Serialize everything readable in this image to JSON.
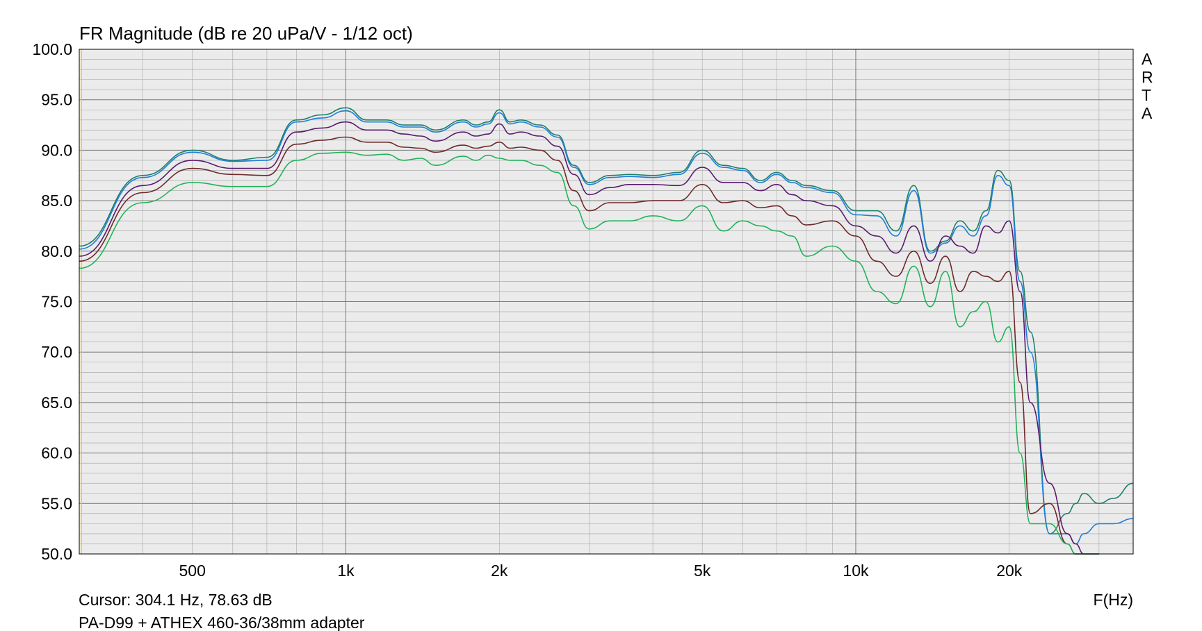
{
  "chart_data": {
    "type": "line",
    "title": "FR Magnitude (dB re 20 uPa/V - 1/12 oct)",
    "xlabel": "F(Hz)",
    "ylabel": "",
    "x_scale": "log",
    "xlim": [
      300,
      35000
    ],
    "ylim": [
      50,
      100
    ],
    "x_tick_values": [
      500,
      1000,
      2000,
      5000,
      10000,
      20000
    ],
    "x_tick_labels": [
      "500",
      "1k",
      "2k",
      "5k",
      "10k",
      "20k"
    ],
    "y_tick_values": [
      50,
      55,
      60,
      65,
      70,
      75,
      80,
      85,
      90,
      95,
      100
    ],
    "y_tick_labels": [
      "50.0",
      "55.0",
      "60.0",
      "65.0",
      "70.0",
      "75.0",
      "80.0",
      "85.0",
      "90.0",
      "95.0",
      "100.0"
    ],
    "grid": true,
    "legend": "none",
    "cursor_text": "Cursor: 304.1 Hz, 78.63 dB",
    "caption": "PA-D99 + ATHEX 460-36/38mm adapter",
    "brand": "ARTA",
    "background_color": "#ebebeb",
    "series": [
      {
        "color": "#1f7f6a",
        "x": [
          300,
          400,
          500,
          600,
          700,
          800,
          900,
          1000,
          1100,
          1200,
          1300,
          1400,
          1500,
          1700,
          1800,
          1900,
          2000,
          2100,
          2200,
          2400,
          2600,
          2800,
          3000,
          3300,
          3600,
          4000,
          4500,
          5000,
          5500,
          6000,
          6500,
          7000,
          7500,
          8000,
          9000,
          10000,
          11000,
          12000,
          13000,
          14000,
          15000,
          16000,
          17000,
          18000,
          19000,
          20000,
          21000,
          22000,
          24000,
          26000,
          27000,
          28000,
          30000,
          32000,
          35000
        ],
        "y": [
          80.5,
          87.5,
          90.0,
          89.0,
          89.3,
          93.0,
          93.5,
          94.2,
          93.0,
          93.0,
          92.5,
          92.5,
          92.0,
          93.0,
          92.5,
          92.8,
          94.0,
          92.8,
          93.0,
          92.5,
          91.5,
          88.5,
          86.8,
          87.5,
          87.6,
          87.5,
          87.8,
          90.0,
          88.5,
          88.2,
          87.0,
          87.8,
          87.0,
          86.5,
          86.0,
          84.0,
          84.0,
          82.0,
          86.5,
          80.0,
          81.0,
          83.0,
          82.0,
          84.0,
          88.0,
          87.0,
          78.0,
          72.0,
          52.0,
          54.0,
          55.0,
          56.0,
          55.0,
          55.5,
          57.0
        ]
      },
      {
        "color": "#1e7fd8",
        "x": [
          300,
          400,
          500,
          600,
          700,
          800,
          900,
          1000,
          1100,
          1200,
          1300,
          1400,
          1500,
          1700,
          1800,
          1900,
          2000,
          2100,
          2200,
          2400,
          2600,
          2800,
          3000,
          3300,
          3600,
          4000,
          4500,
          5000,
          5500,
          6000,
          6500,
          7000,
          7500,
          8000,
          9000,
          10000,
          11000,
          12000,
          13000,
          14000,
          15000,
          16000,
          17000,
          18000,
          19000,
          20000,
          21000,
          22000,
          24000,
          26000,
          27000,
          28000,
          30000,
          32000,
          35000
        ],
        "y": [
          80.2,
          87.3,
          89.8,
          88.9,
          89.0,
          92.8,
          93.2,
          93.9,
          92.8,
          92.8,
          92.3,
          92.3,
          91.8,
          92.8,
          92.3,
          92.6,
          93.7,
          92.6,
          92.8,
          92.3,
          91.3,
          88.3,
          86.6,
          87.3,
          87.4,
          87.3,
          87.6,
          89.7,
          88.3,
          88.0,
          86.8,
          87.6,
          86.8,
          86.3,
          85.8,
          83.6,
          83.5,
          81.5,
          86.0,
          79.8,
          80.8,
          82.5,
          81.5,
          83.5,
          87.5,
          86.5,
          77.0,
          70.0,
          52.0,
          52.0,
          51.0,
          52.0,
          53.0,
          53.0,
          53.5
        ]
      },
      {
        "color": "#5a1a6e",
        "x": [
          300,
          400,
          500,
          600,
          700,
          800,
          900,
          1000,
          1100,
          1200,
          1300,
          1400,
          1500,
          1700,
          1800,
          1900,
          2000,
          2100,
          2200,
          2400,
          2600,
          2800,
          3000,
          3300,
          3600,
          4000,
          4500,
          5000,
          5500,
          6000,
          6500,
          7000,
          7500,
          8000,
          9000,
          10000,
          11000,
          12000,
          13000,
          14000,
          15000,
          16000,
          17000,
          18000,
          19000,
          20000,
          21000,
          22000,
          24000,
          26000,
          27000,
          28000,
          30000
        ],
        "y": [
          79.5,
          86.5,
          89.0,
          88.2,
          88.2,
          91.8,
          92.2,
          92.8,
          92.0,
          92.0,
          91.6,
          91.4,
          90.9,
          91.8,
          91.4,
          91.6,
          92.6,
          91.6,
          91.8,
          91.4,
          90.4,
          87.6,
          85.6,
          86.3,
          86.6,
          86.6,
          86.5,
          88.3,
          86.8,
          86.8,
          86.0,
          86.6,
          85.6,
          85.0,
          84.5,
          82.5,
          81.5,
          79.8,
          82.5,
          79.0,
          81.5,
          80.5,
          79.8,
          82.5,
          81.8,
          83.0,
          76.0,
          65.0,
          57.0,
          52.0,
          51.0,
          50.0,
          50.0
        ]
      },
      {
        "color": "#6e2a2a",
        "x": [
          300,
          400,
          500,
          600,
          700,
          800,
          900,
          1000,
          1100,
          1200,
          1300,
          1400,
          1500,
          1700,
          1800,
          1900,
          2000,
          2100,
          2200,
          2400,
          2600,
          2800,
          3000,
          3300,
          3600,
          4000,
          4500,
          5000,
          5500,
          6000,
          6500,
          7000,
          7500,
          8000,
          9000,
          10000,
          11000,
          12000,
          13000,
          14000,
          15000,
          16000,
          17000,
          18000,
          19000,
          20000,
          21000,
          22000,
          24000,
          26000,
          27000,
          28000,
          30000
        ],
        "y": [
          79.0,
          85.8,
          88.2,
          87.6,
          87.5,
          90.6,
          91.0,
          91.3,
          90.8,
          90.8,
          90.3,
          90.2,
          89.8,
          90.5,
          90.2,
          90.4,
          90.8,
          90.2,
          90.3,
          90.0,
          89.0,
          86.0,
          84.0,
          84.8,
          84.8,
          85.0,
          85.0,
          86.6,
          84.8,
          85.0,
          84.3,
          84.5,
          83.5,
          82.6,
          83.0,
          81.5,
          79.0,
          77.5,
          80.0,
          76.8,
          79.5,
          76.0,
          78.0,
          77.5,
          77.0,
          78.0,
          67.0,
          54.0,
          55.0,
          51.0,
          50.0,
          50.0,
          50.0
        ]
      },
      {
        "color": "#22b35a",
        "x": [
          300,
          400,
          500,
          600,
          700,
          800,
          900,
          1000,
          1100,
          1200,
          1300,
          1400,
          1500,
          1700,
          1800,
          1900,
          2000,
          2100,
          2200,
          2400,
          2600,
          2800,
          3000,
          3300,
          3600,
          4000,
          4500,
          5000,
          5500,
          6000,
          6500,
          7000,
          7500,
          8000,
          9000,
          10000,
          11000,
          12000,
          13000,
          14000,
          15000,
          16000,
          17000,
          18000,
          19000,
          20000,
          21000,
          22000,
          24000,
          26000,
          27000,
          28000,
          30000
        ],
        "y": [
          78.3,
          84.8,
          86.8,
          86.4,
          86.4,
          89.0,
          89.7,
          89.8,
          89.5,
          89.6,
          89.0,
          89.2,
          88.5,
          89.4,
          89.0,
          89.5,
          89.2,
          89.0,
          89.0,
          88.5,
          87.8,
          84.5,
          82.2,
          83.0,
          83.0,
          83.5,
          83.0,
          84.5,
          82.0,
          83.0,
          82.5,
          82.0,
          81.5,
          79.5,
          80.5,
          79.0,
          76.0,
          74.8,
          78.5,
          74.5,
          78.0,
          72.5,
          74.0,
          75.0,
          71.0,
          72.5,
          60.0,
          53.0,
          53.0,
          51.0,
          50.0,
          50.0,
          50.0
        ]
      }
    ]
  }
}
